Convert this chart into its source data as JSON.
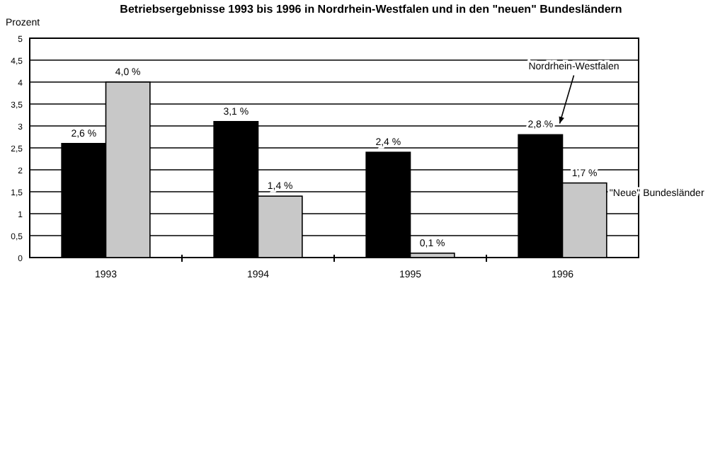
{
  "chart_data": {
    "type": "bar",
    "title": "Betriebsergebnisse 1993 bis 1996 in Nordrhein-Westfalen und in den \"neuen\" Bundesländern",
    "ylabel": "Prozent",
    "categories": [
      "1993",
      "1994",
      "1995",
      "1996"
    ],
    "series": [
      {
        "name": "Nordrhein-Westfalen",
        "color": "#000000",
        "values": [
          2.6,
          3.1,
          2.4,
          2.8
        ],
        "value_labels": [
          "2,6 %",
          "3,1 %",
          "2,4 %",
          "2,8 %"
        ]
      },
      {
        "name": "\"Neue\" Bundesländer",
        "color": "#c8c8c8",
        "values": [
          4.0,
          1.4,
          0.1,
          1.7
        ],
        "value_labels": [
          "4,0 %",
          "1,4 %",
          "0,1 %",
          "1,7 %"
        ]
      }
    ],
    "ylim": [
      0,
      5
    ],
    "yticks": [
      0,
      {
        "value": 0.5,
        "label": "0,5"
      },
      1,
      {
        "value": 1.5,
        "label": "1,5"
      },
      2,
      {
        "value": 2.5,
        "label": "2,5"
      },
      3,
      {
        "value": 3.5,
        "label": "3,5"
      },
      4,
      {
        "value": 4.5,
        "label": "4,5"
      },
      5
    ],
    "grid": "y"
  }
}
